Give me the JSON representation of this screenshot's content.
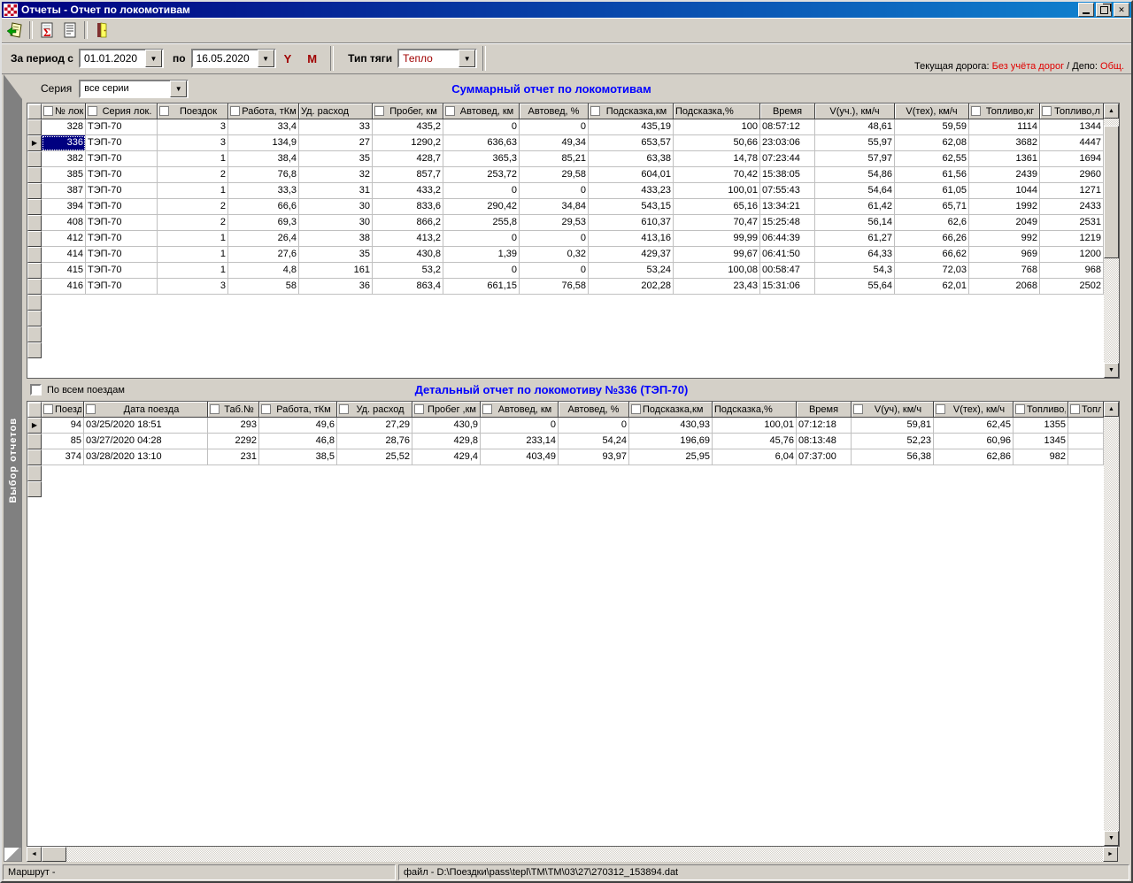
{
  "window": {
    "title": "Отчеты - Отчет по локомотивам",
    "icons": {
      "app": "red-white-checker",
      "minimize": "minimize",
      "restore": "restore",
      "close": "close"
    }
  },
  "toolbar": {
    "buttons": [
      {
        "icon": "open-report-icon"
      },
      {
        "icon": "sigma-summary-icon"
      },
      {
        "icon": "document-report-icon"
      },
      {
        "icon": "exit-door-icon"
      }
    ]
  },
  "filters": {
    "period_label": "За период",
    "from_label": "с",
    "from_value": "01.01.2020",
    "to_label": "по",
    "to_value": "16.05.2020",
    "year_button": "Y",
    "month_button": "M",
    "traction_label": "Тип тяги",
    "traction_value": "Тепло",
    "road_label": "Текущая дорога:",
    "road_value": "Без учёта дорог",
    "depot_label": "/ Депо:",
    "depot_value": "Общ."
  },
  "series_filter": {
    "label": "Серия",
    "value": "все серии"
  },
  "sidebar": {
    "tab_label": "Выбор отчетов"
  },
  "summary": {
    "title": "Суммарный отчет по локомотивам",
    "selected_row": 1,
    "selected_col": 0,
    "columns": [
      {
        "label": "№ лок.",
        "checkbox": true,
        "align": "right",
        "halign": "center"
      },
      {
        "label": "Серия лок.",
        "checkbox": true,
        "align": "left",
        "halign": "center"
      },
      {
        "label": "Поездок",
        "checkbox": true,
        "align": "right",
        "halign": "center"
      },
      {
        "label": "Работа, тКм",
        "checkbox": true,
        "align": "right",
        "halign": "center"
      },
      {
        "label": "Уд. расход",
        "checkbox": false,
        "align": "right",
        "halign": "left"
      },
      {
        "label": "Пробег, км",
        "checkbox": true,
        "align": "right",
        "halign": "center"
      },
      {
        "label": "Автовед, км",
        "checkbox": true,
        "align": "right",
        "halign": "center"
      },
      {
        "label": "Автовед, %",
        "checkbox": false,
        "align": "right",
        "halign": "center"
      },
      {
        "label": "Подсказка,км",
        "checkbox": true,
        "align": "right",
        "halign": "center"
      },
      {
        "label": "Подсказка,%",
        "checkbox": false,
        "align": "right",
        "halign": "left"
      },
      {
        "label": "Время",
        "checkbox": false,
        "align": "left",
        "halign": "center"
      },
      {
        "label": "V(уч.), км/ч",
        "checkbox": false,
        "align": "right",
        "halign": "center"
      },
      {
        "label": "V(тех), км/ч",
        "checkbox": false,
        "align": "right",
        "halign": "center"
      },
      {
        "label": "Топливо,кг",
        "checkbox": true,
        "align": "right",
        "halign": "center"
      },
      {
        "label": "Топливо,л",
        "checkbox": true,
        "align": "right",
        "halign": "center"
      }
    ],
    "rows": [
      [
        "328",
        "ТЭП-70",
        "3",
        "33,4",
        "33",
        "435,2",
        "0",
        "0",
        "435,19",
        "100",
        "08:57:12",
        "48,61",
        "59,59",
        "1114",
        "1344"
      ],
      [
        "336",
        "ТЭП-70",
        "3",
        "134,9",
        "27",
        "1290,2",
        "636,63",
        "49,34",
        "653,57",
        "50,66",
        "23:03:06",
        "55,97",
        "62,08",
        "3682",
        "4447"
      ],
      [
        "382",
        "ТЭП-70",
        "1",
        "38,4",
        "35",
        "428,7",
        "365,3",
        "85,21",
        "63,38",
        "14,78",
        "07:23:44",
        "57,97",
        "62,55",
        "1361",
        "1694"
      ],
      [
        "385",
        "ТЭП-70",
        "2",
        "76,8",
        "32",
        "857,7",
        "253,72",
        "29,58",
        "604,01",
        "70,42",
        "15:38:05",
        "54,86",
        "61,56",
        "2439",
        "2960"
      ],
      [
        "387",
        "ТЭП-70",
        "1",
        "33,3",
        "31",
        "433,2",
        "0",
        "0",
        "433,23",
        "100,01",
        "07:55:43",
        "54,64",
        "61,05",
        "1044",
        "1271"
      ],
      [
        "394",
        "ТЭП-70",
        "2",
        "66,6",
        "30",
        "833,6",
        "290,42",
        "34,84",
        "543,15",
        "65,16",
        "13:34:21",
        "61,42",
        "65,71",
        "1992",
        "2433"
      ],
      [
        "408",
        "ТЭП-70",
        "2",
        "69,3",
        "30",
        "866,2",
        "255,8",
        "29,53",
        "610,37",
        "70,47",
        "15:25:48",
        "56,14",
        "62,6",
        "2049",
        "2531"
      ],
      [
        "412",
        "ТЭП-70",
        "1",
        "26,4",
        "38",
        "413,2",
        "0",
        "0",
        "413,16",
        "99,99",
        "06:44:39",
        "61,27",
        "66,26",
        "992",
        "1219"
      ],
      [
        "414",
        "ТЭП-70",
        "1",
        "27,6",
        "35",
        "430,8",
        "1,39",
        "0,32",
        "429,37",
        "99,67",
        "06:41:50",
        "64,33",
        "66,62",
        "969",
        "1200"
      ],
      [
        "415",
        "ТЭП-70",
        "1",
        "4,8",
        "161",
        "53,2",
        "0",
        "0",
        "53,24",
        "100,08",
        "00:58:47",
        "54,3",
        "72,03",
        "768",
        "968"
      ],
      [
        "416",
        "ТЭП-70",
        "3",
        "58",
        "36",
        "863,4",
        "661,15",
        "76,58",
        "202,28",
        "23,43",
        "15:31:06",
        "55,64",
        "62,01",
        "2068",
        "2502"
      ]
    ]
  },
  "detail": {
    "checkbox_label": "По всем поездам",
    "title": "Детальный отчет по локомотиву №336 (ТЭП-70)",
    "selected_row": 0,
    "selected_col": null,
    "columns": [
      {
        "label": "Поезд",
        "checkbox": true,
        "align": "right",
        "halign": "center"
      },
      {
        "label": "Дата поезда",
        "checkbox": true,
        "align": "left",
        "halign": "center"
      },
      {
        "label": "Таб.№",
        "checkbox": true,
        "align": "right",
        "halign": "center"
      },
      {
        "label": "Работа, тКм",
        "checkbox": true,
        "align": "right",
        "halign": "center"
      },
      {
        "label": "Уд. расход",
        "checkbox": true,
        "align": "right",
        "halign": "center"
      },
      {
        "label": "Пробег ,км",
        "checkbox": true,
        "align": "right",
        "halign": "center"
      },
      {
        "label": "Автовед, км",
        "checkbox": true,
        "align": "right",
        "halign": "center"
      },
      {
        "label": "Автовед, %",
        "checkbox": false,
        "align": "right",
        "halign": "center"
      },
      {
        "label": "Подсказка,км",
        "checkbox": true,
        "align": "right",
        "halign": "left"
      },
      {
        "label": "Подсказка,%",
        "checkbox": false,
        "align": "right",
        "halign": "left"
      },
      {
        "label": "Время",
        "checkbox": false,
        "align": "left",
        "halign": "center"
      },
      {
        "label": "V(уч), км/ч",
        "checkbox": true,
        "align": "right",
        "halign": "center"
      },
      {
        "label": "V(тех), км/ч",
        "checkbox": true,
        "align": "right",
        "halign": "center"
      },
      {
        "label": "Топливо,кг",
        "checkbox": true,
        "align": "right",
        "halign": "center"
      },
      {
        "label": "Топли",
        "checkbox": true,
        "align": "right",
        "halign": "left"
      }
    ],
    "rows": [
      [
        "94",
        "03/25/2020 18:51",
        "293",
        "49,6",
        "27,29",
        "430,9",
        "0",
        "0",
        "430,93",
        "100,01",
        "07:12:18",
        "59,81",
        "62,45",
        "1355",
        ""
      ],
      [
        "85",
        "03/27/2020 04:28",
        "2292",
        "46,8",
        "28,76",
        "429,8",
        "233,14",
        "54,24",
        "196,69",
        "45,76",
        "08:13:48",
        "52,23",
        "60,96",
        "1345",
        ""
      ],
      [
        "374",
        "03/28/2020 13:10",
        "231",
        "38,5",
        "25,52",
        "429,4",
        "403,49",
        "93,97",
        "25,95",
        "6,04",
        "07:37:00",
        "56,38",
        "62,86",
        "982",
        ""
      ]
    ]
  },
  "statusbar": {
    "route": "Маршрут -",
    "file": "файл - D:\\Поездки\\pass\\tepl\\TM\\TM\\03\\27\\270312_153894.dat"
  },
  "colors": {
    "title_blue": "#0000ff",
    "accent_red": "#e00000",
    "maroon": "#a00000",
    "selection": "#000080",
    "titlebar_from": "#000080",
    "titlebar_to": "#1084d0"
  }
}
